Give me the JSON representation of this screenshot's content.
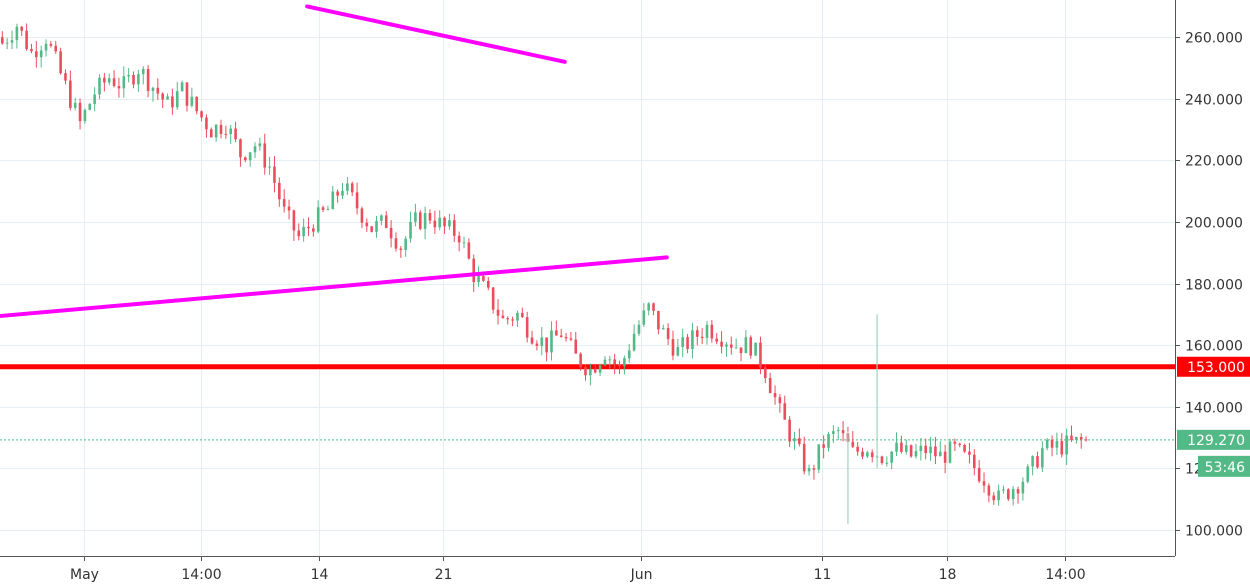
{
  "chart_data": {
    "type": "candlestick",
    "x_tick_labels": [
      "May",
      "14:00",
      "14",
      "21",
      "Jun",
      "11",
      "18",
      "14:00"
    ],
    "y_ticks": [
      "100.000",
      "120.000",
      "140.000",
      "160.000",
      "180.000",
      "200.000",
      "220.000",
      "240.000",
      "260.000"
    ],
    "y_tick_values": [
      100,
      120,
      140,
      160,
      180,
      200,
      220,
      240,
      260
    ],
    "ylim": [
      93,
      268
    ],
    "grid": true,
    "current_price": {
      "value": 129.27,
      "label": "129.270",
      "countdown": "53:46",
      "color": "#53b987"
    },
    "horizontal_level": {
      "value": 153.0,
      "label": "153.000",
      "color": "#ff0000"
    },
    "trendlines": [
      {
        "color": "#ff00ff",
        "from": {
          "bar": 0,
          "price": 169.5
        },
        "to": {
          "bar": 137,
          "price": 188.5
        }
      },
      {
        "color": "#ff00ff",
        "from": {
          "bar": 63,
          "price": 270.0
        },
        "to": {
          "bar": 116,
          "price": 252.0
        }
      }
    ],
    "close_path": [
      [
        0,
        258
      ],
      [
        3,
        264
      ],
      [
        6,
        255
      ],
      [
        9,
        260
      ],
      [
        12,
        248
      ],
      [
        16,
        232
      ],
      [
        19,
        242
      ],
      [
        22,
        247
      ],
      [
        25,
        244
      ],
      [
        28,
        250
      ],
      [
        31,
        244
      ],
      [
        34,
        238
      ],
      [
        37,
        243
      ],
      [
        40,
        236
      ],
      [
        43,
        230
      ],
      [
        46,
        232
      ],
      [
        49,
        222
      ],
      [
        52,
        225
      ],
      [
        55,
        218
      ],
      [
        58,
        203
      ],
      [
        61,
        195
      ],
      [
        64,
        200
      ],
      [
        67,
        204
      ],
      [
        70,
        212
      ],
      [
        73,
        205
      ],
      [
        76,
        198
      ],
      [
        79,
        200
      ],
      [
        82,
        192
      ],
      [
        85,
        200
      ],
      [
        88,
        202
      ],
      [
        91,
        198
      ],
      [
        94,
        196
      ],
      [
        97,
        183
      ],
      [
        100,
        176
      ],
      [
        103,
        168
      ],
      [
        106,
        170
      ],
      [
        109,
        164
      ],
      [
        112,
        160
      ],
      [
        115,
        164
      ],
      [
        118,
        156
      ],
      [
        121,
        152
      ],
      [
        124,
        158
      ],
      [
        127,
        152
      ],
      [
        130,
        164
      ],
      [
        133,
        172
      ],
      [
        136,
        164
      ],
      [
        139,
        158
      ],
      [
        142,
        162
      ],
      [
        145,
        166
      ],
      [
        148,
        163
      ],
      [
        151,
        160
      ],
      [
        154,
        160
      ],
      [
        157,
        152
      ],
      [
        160,
        138
      ],
      [
        163,
        128
      ],
      [
        166,
        118
      ],
      [
        169,
        128
      ],
      [
        172,
        132
      ],
      [
        175,
        125
      ],
      [
        178,
        127
      ],
      [
        181,
        124
      ],
      [
        184,
        126
      ],
      [
        187,
        124
      ],
      [
        190,
        126
      ],
      [
        193,
        124
      ],
      [
        196,
        126
      ],
      [
        199,
        122
      ],
      [
        202,
        117
      ],
      [
        205,
        110
      ],
      [
        208,
        114
      ],
      [
        211,
        118
      ],
      [
        214,
        126
      ],
      [
        217,
        127
      ],
      [
        220,
        128
      ],
      [
        223,
        129.27
      ]
    ],
    "wicks": [
      {
        "bar": 180,
        "high": 170,
        "low": 120
      },
      {
        "bar": 174,
        "high": 132,
        "low": 102
      }
    ]
  }
}
